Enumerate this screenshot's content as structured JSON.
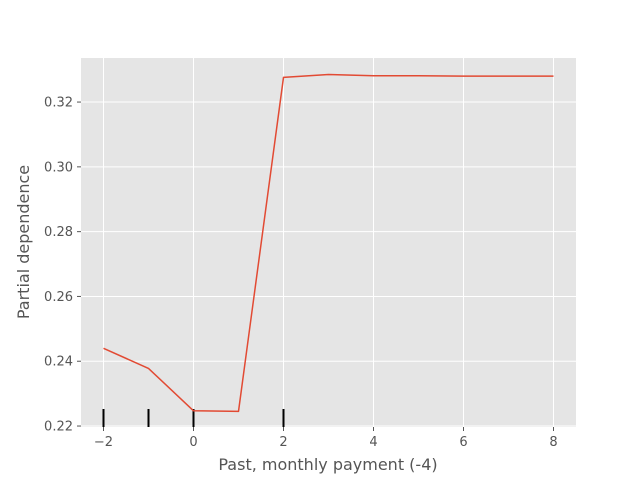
{
  "chart_data": {
    "type": "line",
    "title": "",
    "xlabel": "Past, monthly payment (-4)",
    "ylabel": "Partial dependence",
    "xlim": [
      -2.5,
      8.5
    ],
    "ylim": [
      0.2197,
      0.3336
    ],
    "xticks": [
      -2,
      0,
      2,
      4,
      6,
      8
    ],
    "xtick_labels": [
      "−2",
      "0",
      "2",
      "4",
      "6",
      "8"
    ],
    "yticks": [
      0.22,
      0.24,
      0.26,
      0.28,
      0.3,
      0.32
    ],
    "ytick_labels": [
      "0.22",
      "0.24",
      "0.26",
      "0.28",
      "0.30",
      "0.32"
    ],
    "grid": true,
    "series": [
      {
        "x": [
          -2,
          -1,
          0,
          1,
          2,
          3,
          4,
          5,
          6,
          7,
          8
        ],
        "y": [
          0.244,
          0.2378,
          0.2247,
          0.2245,
          0.3276,
          0.3285,
          0.3281,
          0.3281,
          0.328,
          0.328,
          0.328
        ],
        "color": "#E24A33"
      }
    ],
    "deciles": [
      -2,
      -1,
      0,
      2
    ],
    "style": {
      "background": "#E5E5E5",
      "grid_color": "#ffffff",
      "decile_color": "#000000"
    }
  }
}
